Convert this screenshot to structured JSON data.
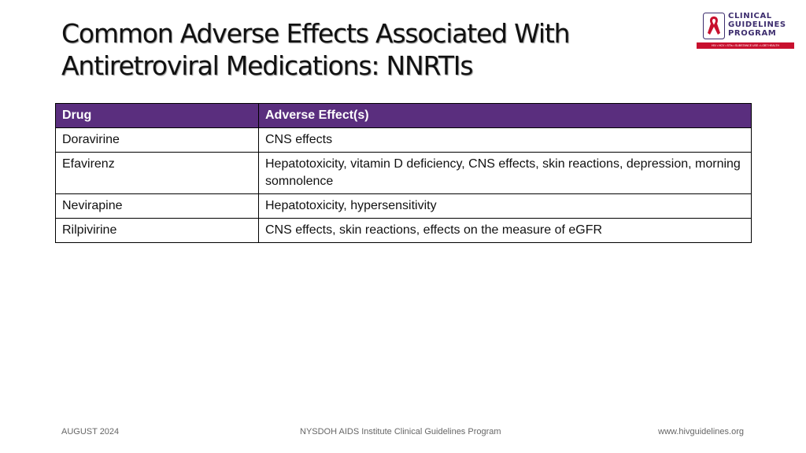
{
  "slide": {
    "title_line1": "Common Adverse Effects Associated With",
    "title_line2": "Antiretroviral Medications: NNRTIs"
  },
  "logo": {
    "line1": "CLINICAL",
    "line2": "GUIDELINES",
    "line3": "PROGRAM",
    "tagline": "HIV • HCV • STIs • SUBSTANCE USE • LGBT HEALTH",
    "icon": "red-ribbon-icon",
    "colors": {
      "ribbon": "#c8102e",
      "text": "#3d2d6e",
      "bar": "#c8102e"
    }
  },
  "table": {
    "headers": [
      "Drug",
      "Adverse Effect(s)"
    ],
    "rows": [
      [
        "Doravirine",
        "CNS effects"
      ],
      [
        "Efavirenz",
        "Hepatotoxicity, vitamin D deficiency, CNS effects, skin reactions, depression, morning somnolence"
      ],
      [
        "Nevirapine",
        "Hepatotoxicity, hypersensitivity"
      ],
      [
        "Rilpivirine",
        "CNS effects, skin reactions, effects on the measure of eGFR"
      ]
    ],
    "header_color": "#5a2e7e"
  },
  "footer": {
    "date": "AUGUST 2024",
    "org": "NYSDOH AIDS Institute Clinical Guidelines Program",
    "url": "www.hivguidelines.org"
  }
}
